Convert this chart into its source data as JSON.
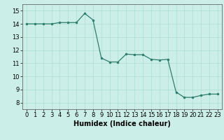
{
  "x": [
    0,
    1,
    2,
    3,
    4,
    5,
    6,
    7,
    8,
    9,
    10,
    11,
    12,
    13,
    14,
    15,
    16,
    17,
    18,
    19,
    20,
    21,
    22,
    23
  ],
  "y": [
    14.0,
    14.0,
    14.0,
    14.0,
    14.1,
    14.1,
    14.1,
    14.8,
    14.3,
    11.4,
    11.1,
    11.1,
    11.7,
    11.65,
    11.65,
    11.3,
    11.25,
    11.3,
    8.8,
    8.4,
    8.4,
    8.55,
    8.65,
    8.65
  ],
  "line_color": "#2e7d6e",
  "marker_color": "#2e7d6e",
  "bg_color": "#cceee8",
  "grid_color": "#aaddcc",
  "xlabel": "Humidex (Indice chaleur)",
  "xlim": [
    -0.5,
    23.5
  ],
  "ylim": [
    7.5,
    15.5
  ],
  "yticks": [
    8,
    9,
    10,
    11,
    12,
    13,
    14,
    15
  ],
  "xticks": [
    0,
    1,
    2,
    3,
    4,
    5,
    6,
    7,
    8,
    9,
    10,
    11,
    12,
    13,
    14,
    15,
    16,
    17,
    18,
    19,
    20,
    21,
    22,
    23
  ],
  "label_fontsize": 7,
  "tick_fontsize": 6
}
